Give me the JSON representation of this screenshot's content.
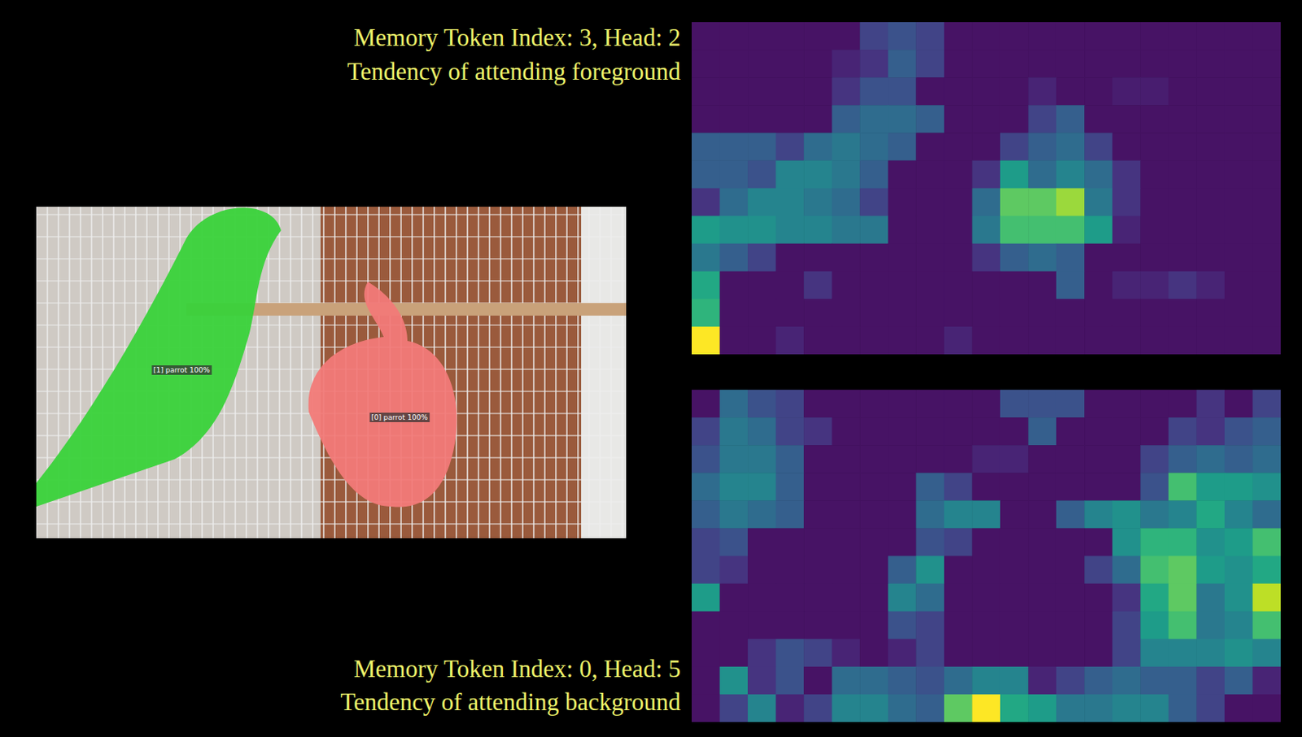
{
  "chart_data": [
    {
      "type": "heatmap",
      "title": "Memory Token Index: 3, Head: 2",
      "subtitle": "Tendency of attending foreground",
      "tick_labels": false,
      "color_range": [
        0,
        1
      ],
      "cells": [
        [
          0.05,
          0.05,
          0.05,
          0.05,
          0.05,
          0.05,
          0.2,
          0.25,
          0.2,
          0.05,
          0.05,
          0.05,
          0.05,
          0.05,
          0.05,
          0.05,
          0.05,
          0.05,
          0.05,
          0.05,
          0.05
        ],
        [
          0.05,
          0.05,
          0.05,
          0.05,
          0.05,
          0.1,
          0.15,
          0.3,
          0.2,
          0.05,
          0.05,
          0.05,
          0.05,
          0.05,
          0.05,
          0.05,
          0.05,
          0.05,
          0.05,
          0.05,
          0.05
        ],
        [
          0.05,
          0.05,
          0.05,
          0.05,
          0.05,
          0.15,
          0.25,
          0.25,
          0.05,
          0.05,
          0.05,
          0.05,
          0.1,
          0.05,
          0.05,
          0.08,
          0.08,
          0.05,
          0.05,
          0.05,
          0.05
        ],
        [
          0.05,
          0.05,
          0.05,
          0.05,
          0.05,
          0.3,
          0.35,
          0.35,
          0.3,
          0.05,
          0.05,
          0.05,
          0.2,
          0.3,
          0.05,
          0.05,
          0.05,
          0.05,
          0.05,
          0.05,
          0.05
        ],
        [
          0.3,
          0.3,
          0.3,
          0.2,
          0.35,
          0.4,
          0.35,
          0.3,
          0.05,
          0.05,
          0.05,
          0.2,
          0.3,
          0.35,
          0.2,
          0.05,
          0.05,
          0.05,
          0.05,
          0.05,
          0.05
        ],
        [
          0.3,
          0.3,
          0.25,
          0.45,
          0.45,
          0.4,
          0.3,
          0.05,
          0.05,
          0.05,
          0.15,
          0.55,
          0.35,
          0.45,
          0.35,
          0.15,
          0.05,
          0.05,
          0.05,
          0.05,
          0.05
        ],
        [
          0.15,
          0.35,
          0.45,
          0.45,
          0.4,
          0.35,
          0.2,
          0.05,
          0.05,
          0.05,
          0.35,
          0.75,
          0.75,
          0.85,
          0.4,
          0.15,
          0.05,
          0.05,
          0.05,
          0.05,
          0.05
        ],
        [
          0.55,
          0.5,
          0.5,
          0.45,
          0.45,
          0.4,
          0.4,
          0.05,
          0.05,
          0.05,
          0.4,
          0.7,
          0.7,
          0.7,
          0.55,
          0.1,
          0.05,
          0.05,
          0.05,
          0.05,
          0.05
        ],
        [
          0.4,
          0.3,
          0.2,
          0.05,
          0.05,
          0.05,
          0.05,
          0.05,
          0.05,
          0.05,
          0.15,
          0.3,
          0.35,
          0.3,
          0.05,
          0.05,
          0.05,
          0.05,
          0.05,
          0.05,
          0.05
        ],
        [
          0.6,
          0.05,
          0.05,
          0.05,
          0.15,
          0.05,
          0.05,
          0.05,
          0.05,
          0.05,
          0.05,
          0.05,
          0.05,
          0.3,
          0.05,
          0.1,
          0.1,
          0.15,
          0.1,
          0.05,
          0.05
        ],
        [
          0.65,
          0.05,
          0.05,
          0.05,
          0.05,
          0.05,
          0.05,
          0.05,
          0.05,
          0.05,
          0.05,
          0.05,
          0.05,
          0.05,
          0.05,
          0.05,
          0.05,
          0.05,
          0.05,
          0.05,
          0.05
        ],
        [
          1,
          0.05,
          0.05,
          0.1,
          0.05,
          0.05,
          0.05,
          0.05,
          0.05,
          0.1,
          0.05,
          0.05,
          0.05,
          0.05,
          0.05,
          0.05,
          0.05,
          0.05,
          0.05,
          0.05,
          0.05
        ]
      ]
    },
    {
      "type": "heatmap",
      "title": "Memory Token Index: 0, Head: 5",
      "subtitle": "Tendency of attending background",
      "tick_labels": false,
      "color_range": [
        0,
        1
      ],
      "cells": [
        [
          0.05,
          0.35,
          0.25,
          0.2,
          0.05,
          0.05,
          0.05,
          0.05,
          0.05,
          0.05,
          0.05,
          0.25,
          0.25,
          0.25,
          0.05,
          0.05,
          0.05,
          0.05,
          0.15,
          0.05,
          0.2
        ],
        [
          0.2,
          0.4,
          0.35,
          0.2,
          0.15,
          0.05,
          0.05,
          0.05,
          0.05,
          0.05,
          0.05,
          0.05,
          0.3,
          0.05,
          0.05,
          0.05,
          0.05,
          0.2,
          0.15,
          0.25,
          0.3
        ],
        [
          0.25,
          0.4,
          0.4,
          0.3,
          0.05,
          0.05,
          0.05,
          0.05,
          0.05,
          0.05,
          0.1,
          0.1,
          0.05,
          0.05,
          0.05,
          0.05,
          0.2,
          0.3,
          0.35,
          0.3,
          0.35
        ],
        [
          0.35,
          0.45,
          0.45,
          0.3,
          0.05,
          0.05,
          0.05,
          0.05,
          0.3,
          0.2,
          0.05,
          0.05,
          0.05,
          0.05,
          0.05,
          0.05,
          0.25,
          0.7,
          0.55,
          0.55,
          0.5
        ],
        [
          0.3,
          0.4,
          0.35,
          0.3,
          0.05,
          0.05,
          0.05,
          0.05,
          0.35,
          0.45,
          0.45,
          0.05,
          0.05,
          0.3,
          0.45,
          0.5,
          0.4,
          0.45,
          0.6,
          0.45,
          0.35
        ],
        [
          0.2,
          0.25,
          0.05,
          0.05,
          0.05,
          0.05,
          0.05,
          0.05,
          0.25,
          0.2,
          0.05,
          0.05,
          0.05,
          0.05,
          0.05,
          0.5,
          0.65,
          0.65,
          0.5,
          0.55,
          0.7
        ],
        [
          0.2,
          0.15,
          0.05,
          0.05,
          0.05,
          0.05,
          0.05,
          0.3,
          0.5,
          0.05,
          0.05,
          0.05,
          0.05,
          0.05,
          0.2,
          0.35,
          0.7,
          0.75,
          0.55,
          0.5,
          0.6
        ],
        [
          0.55,
          0.05,
          0.05,
          0.05,
          0.05,
          0.05,
          0.05,
          0.45,
          0.35,
          0.05,
          0.05,
          0.05,
          0.05,
          0.05,
          0.05,
          0.15,
          0.6,
          0.75,
          0.4,
          0.5,
          0.9
        ],
        [
          0.05,
          0.05,
          0.05,
          0.05,
          0.05,
          0.05,
          0.05,
          0.25,
          0.2,
          0.05,
          0.05,
          0.05,
          0.05,
          0.05,
          0.05,
          0.2,
          0.55,
          0.7,
          0.4,
          0.45,
          0.7
        ],
        [
          0.05,
          0.05,
          0.15,
          0.25,
          0.2,
          0.1,
          0.05,
          0.1,
          0.2,
          0.05,
          0.05,
          0.05,
          0.05,
          0.05,
          0.05,
          0.2,
          0.45,
          0.45,
          0.45,
          0.5,
          0.45
        ],
        [
          0.05,
          0.5,
          0.15,
          0.25,
          0.05,
          0.35,
          0.35,
          0.3,
          0.25,
          0.35,
          0.45,
          0.45,
          0.1,
          0.2,
          0.3,
          0.35,
          0.3,
          0.3,
          0.2,
          0.3,
          0.1
        ],
        [
          0.05,
          0.2,
          0.45,
          0.1,
          0.2,
          0.45,
          0.45,
          0.35,
          0.3,
          0.75,
          1,
          0.6,
          0.55,
          0.4,
          0.4,
          0.45,
          0.45,
          0.3,
          0.2,
          0.05,
          0.05
        ]
      ]
    }
  ],
  "image": {
    "labels": [
      "[1] parrot 100%",
      "[0] parrot 100%"
    ]
  }
}
